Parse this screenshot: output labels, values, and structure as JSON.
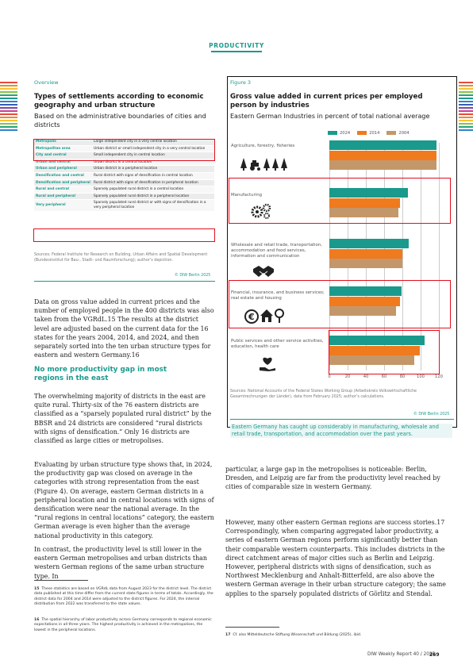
{
  "header": {
    "section": "PRODUCTIVITY"
  },
  "stripe_colors": [
    "#e64a3c",
    "#f08a2a",
    "#f6c531",
    "#8cc24a",
    "#27a37a",
    "#1a9a8c",
    "#2a86c8",
    "#3b5bb5",
    "#7a4aa8",
    "#c9418f",
    "#e64a3c",
    "#f08a2a",
    "#f6c531",
    "#8cc24a",
    "#27a37a",
    "#2a86c8"
  ],
  "overview": {
    "label": "Overview",
    "title": "Types of settlements according to economic geography and urban structure",
    "subtitle": "Based on the administrative boundaries of cities and districts",
    "rows": [
      {
        "type": "Metropolis",
        "desc": "Large independent city in a very central location"
      },
      {
        "type": "Metropolitan area",
        "desc": "Urban district or small independent city in a very central location"
      },
      {
        "type": "City and central",
        "desc": "Small independent city in central location"
      },
      {
        "type": "Urban and central",
        "desc": "Urban district in a central location"
      },
      {
        "type": "Urban and peripheral",
        "desc": "Urban district in a peripheral location"
      },
      {
        "type": "Densification and central",
        "desc": "Rural district with signs of densification in central location"
      },
      {
        "type": "Densification and peripheral",
        "desc": "Rural district with signs of densification in peripheral location"
      },
      {
        "type": "Rural and central",
        "desc": "Sparsely populated rural district in a central location"
      },
      {
        "type": "Rural and peripheral",
        "desc": "Sparsely populated rural district in a peripheral location"
      },
      {
        "type": "Very peripheral",
        "desc": "Sparsely populated rural district or with signs of densification in a very peripheral location"
      }
    ],
    "source": "Sources: Federal Institute for Research on Building, Urban Affairs and Spatial Development (Bundesinstitut für Bau-, Stadt- und Raumforschung); author’s depiction.",
    "copyright": "© DIW Berlin 2025"
  },
  "body": {
    "para1": "Data on gross value added in current prices and the number of employed people in the 400 districts was also taken from the VGRdL.15 The results at the district level are adjusted based on the current data for the 16 states for the years 2004, 2014, and 2024, and then separately sorted into the ten urban structure types for eastern and western Germany.16",
    "heading": "No more productivity gap in most regions in the east",
    "para2": "The overwhelming majority of districts in the east are quite rural. Thirty-six of the 76 eastern districts are classified as a “sparsely populated rural district” by the BBSR and 24 districts are considered “rural districts with signs of densification.” Only 16 districts are classified as large cities or metropolises.",
    "para3": "Evaluating by urban structure type shows that, in 2024, the productivity gap was closed on average in the categories with strong representation from the east (Figure 4). On average, eastern German districts in a peripheral location and in central locations with signs of densification were near the national average. In the “rural regions in central locations” category, the eastern German average is even higher than the average national productivity in this category.",
    "para4": "In contrast, the productivity level is still lower in the eastern German metropolises and urban districts than western German regions of the same urban structure type. In",
    "para5": "particular, a large gap in the metropolises is noticeable: Berlin, Dresden, and Leipzig are far from the productivity level reached by cities of comparable size in western Germany.",
    "para6": "However, many other eastern German regions are success stories.17 Correspondingly, when comparing aggregated labor productivity, a series of eastern German regions perform significantly better than their comparable western counterparts. This includes districts in the direct catchment areas of major cities such as Berlin and Leipzig. However, peripheral districts with signs of densification, such as Northwest Mecklenburg and Anhalt-Bitterfeld, are also above the western German average in their urban structure category; the same applies to the sparsely populated districts of Görlitz and Stendal."
  },
  "footnotes": {
    "fn15_num": "15",
    "fn15": "These statistics are based on VGRdL data from August 2023 for the district level. The district data published at this time differ from the current state figures in terms of totals. Accordingly, the district data for 2004 and 2014 were adjusted to the district figures. For 2024, the internal distribution from 2022 was transferred to the state values.",
    "fn16_num": "16",
    "fn16": "The spatial hierarchy of labor productivity across Germany corresponds to regional economic expectations in all three years. The highest productivity is achieved in the metropolises, the lowest in the peripheral locations.",
    "fn17_num": "17",
    "fn17": "Cf. also Mitteldeutsche Stiftung Wissenschaft und Bildung (2025), ibid."
  },
  "figure": {
    "label": "Figure 3",
    "title": "Gross value added in current prices per employed person by industries",
    "subtitle": "Eastern German Industries in percent of total national average",
    "source": "Sources: National Accounts of the Federal States Working Group (Arbeitskreis Volkswirtschaftliche Gesamtrechnungen der Länder), data from February 2025; author’s calculations.",
    "copyright": "© DIW Berlin 2025",
    "caption": "Eastern Germany has caught up considerably in manufacturing, wholesale and retail trade, transportation, and accommodation over the past years.",
    "icons": [
      "tractor-tree-icon",
      "gears-icon",
      "handshake-icon",
      "finance-house-icon",
      "heart-hand-icon"
    ]
  },
  "chart_data": {
    "type": "bar",
    "orientation": "horizontal",
    "categories": [
      "Agriculture, forestry, fisheries",
      "Manufacturing",
      "Wholesale and retail trade, transportation, accommodation and food services, information and communication",
      "Financial, insurance, and business services; real estate and housing",
      "Public services and other service activities, education, health care"
    ],
    "series": [
      {
        "name": "2024",
        "color": "#1a9a8c",
        "values": [
          117,
          86,
          87,
          79,
          104
        ]
      },
      {
        "name": "2014",
        "color": "#f07a1e",
        "values": [
          117,
          77,
          80,
          77,
          99
        ]
      },
      {
        "name": "2004",
        "color": "#c4976a",
        "values": [
          117,
          76,
          80,
          73,
          93
        ]
      }
    ],
    "xticks": [
      0,
      20,
      40,
      60,
      80,
      100,
      120
    ],
    "xlim": [
      0,
      120
    ],
    "legend": "top",
    "grid": true
  },
  "footer": {
    "report": "DIW Weekly Report 40 / 2025",
    "page": "269"
  }
}
